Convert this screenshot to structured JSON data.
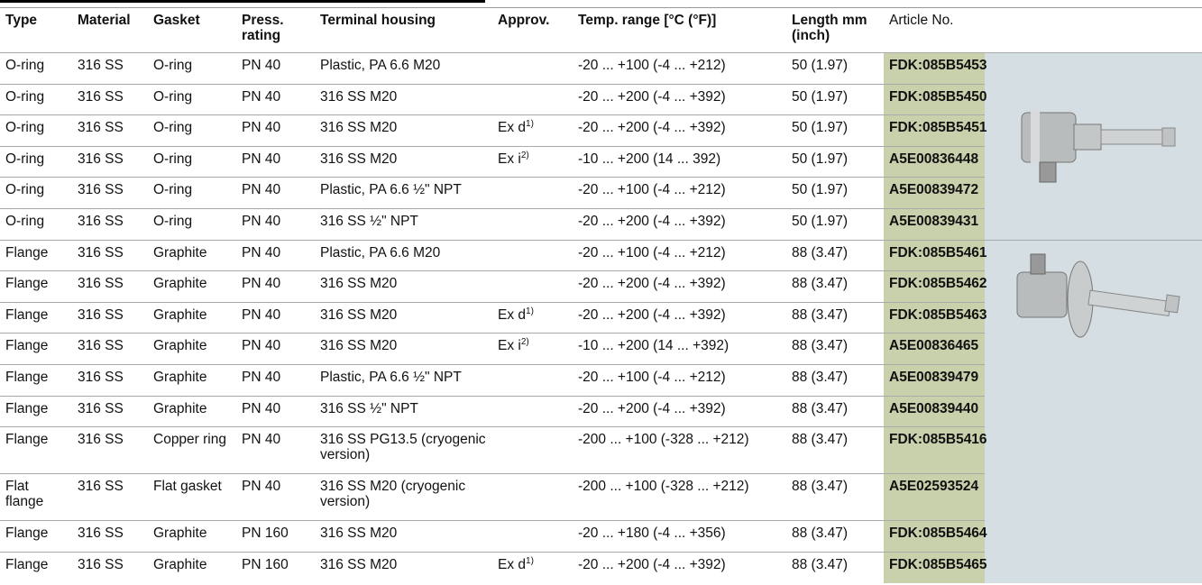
{
  "table": {
    "headers": [
      "Type",
      "Material",
      "Gasket",
      "Press. rating",
      "Terminal housing",
      "Approv.",
      "Temp. range [°C (°F)]",
      "Length mm (inch)",
      "Article No."
    ],
    "rows": [
      [
        "O-ring",
        "316 SS",
        "O-ring",
        "PN 40",
        "Plastic, PA 6.6 M20",
        null,
        "-20 ... +100 (-4 ... +212)",
        "50 (1.97)",
        "FDK:085B5453"
      ],
      [
        "O-ring",
        "316 SS",
        "O-ring",
        "PN 40",
        "316 SS M20",
        null,
        "-20 ... +200 (-4 ... +392)",
        "50 (1.97)",
        "FDK:085B5450"
      ],
      [
        "O-ring",
        "316 SS",
        "O-ring",
        "PN 40",
        "316 SS M20",
        {
          "text": "Ex d",
          "sup": "1)"
        },
        "-20 ... +200 (-4 ... +392)",
        "50 (1.97)",
        "FDK:085B5451"
      ],
      [
        "O-ring",
        "316 SS",
        "O-ring",
        "PN 40",
        "316 SS M20",
        {
          "text": "Ex i",
          "sup": "2)"
        },
        "-10 ... +200 (14 ... 392)",
        "50 (1.97)",
        "A5E00836448"
      ],
      [
        "O-ring",
        "316 SS",
        "O-ring",
        "PN 40",
        "Plastic, PA 6.6 ½\" NPT",
        null,
        "-20 ... +100 (-4 ... +212)",
        "50 (1.97)",
        "A5E00839472"
      ],
      [
        "O-ring",
        "316 SS",
        "O-ring",
        "PN 40",
        "316 SS ½\" NPT",
        null,
        "-20 ... +200 (-4 ... +392)",
        "50 (1.97)",
        "A5E00839431"
      ],
      [
        "Flange",
        "316 SS",
        "Graphite",
        "PN 40",
        "Plastic, PA 6.6 M20",
        null,
        "-20 ... +100 (-4 ... +212)",
        "88 (3.47)",
        "FDK:085B5461"
      ],
      [
        "Flange",
        "316 SS",
        "Graphite",
        "PN 40",
        "316 SS M20",
        null,
        "-20 ... +200 (-4 ... +392)",
        "88 (3.47)",
        "FDK:085B5462"
      ],
      [
        "Flange",
        "316 SS",
        "Graphite",
        "PN 40",
        "316 SS M20",
        {
          "text": "Ex d",
          "sup": "1)"
        },
        "-20 ... +200 (-4 ... +392)",
        "88 (3.47)",
        "FDK:085B5463"
      ],
      [
        "Flange",
        "316 SS",
        "Graphite",
        "PN 40",
        "316 SS M20",
        {
          "text": "Ex i",
          "sup": "2)"
        },
        "-10 ... +200 (14 ... +392)",
        "88 (3.47)",
        "A5E00836465"
      ],
      [
        "Flange",
        "316 SS",
        "Graphite",
        "PN 40",
        "Plastic, PA 6.6 ½\" NPT",
        null,
        "-20 ... +100 (-4 ... +212)",
        "88 (3.47)",
        "A5E00839479"
      ],
      [
        "Flange",
        "316 SS",
        "Graphite",
        "PN 40",
        "316 SS ½\" NPT",
        null,
        "-20 ... +200 (-4 ... +392)",
        "88 (3.47)",
        "A5E00839440"
      ],
      [
        "Flange",
        "316 SS",
        "Copper ring",
        "PN 40",
        "316 SS PG13.5 (cryogenic version)",
        null,
        "-200 ... +100 (-328 ... +212)",
        "88 (3.47)",
        "FDK:085B5416"
      ],
      [
        "Flat flange",
        "316 SS",
        "Flat gasket",
        "PN 40",
        "316 SS M20 (cryogenic version)",
        null,
        "-200 ... +100 (-328 ... +212)",
        "88 (3.47)",
        "A5E02593524"
      ],
      [
        "Flange",
        "316 SS",
        "Graphite",
        "PN 160",
        "316 SS M20",
        null,
        "-20 ... +180 (-4 ... +356)",
        "88 (3.47)",
        "FDK:085B5464"
      ],
      [
        "Flange",
        "316 SS",
        "Graphite",
        "PN 160",
        "316 SS M20",
        {
          "text": "Ex d",
          "sup": "1)"
        },
        "-20 ... +200 (-4 ... +392)",
        "88 (3.47)",
        "FDK:085B5465"
      ]
    ]
  }
}
